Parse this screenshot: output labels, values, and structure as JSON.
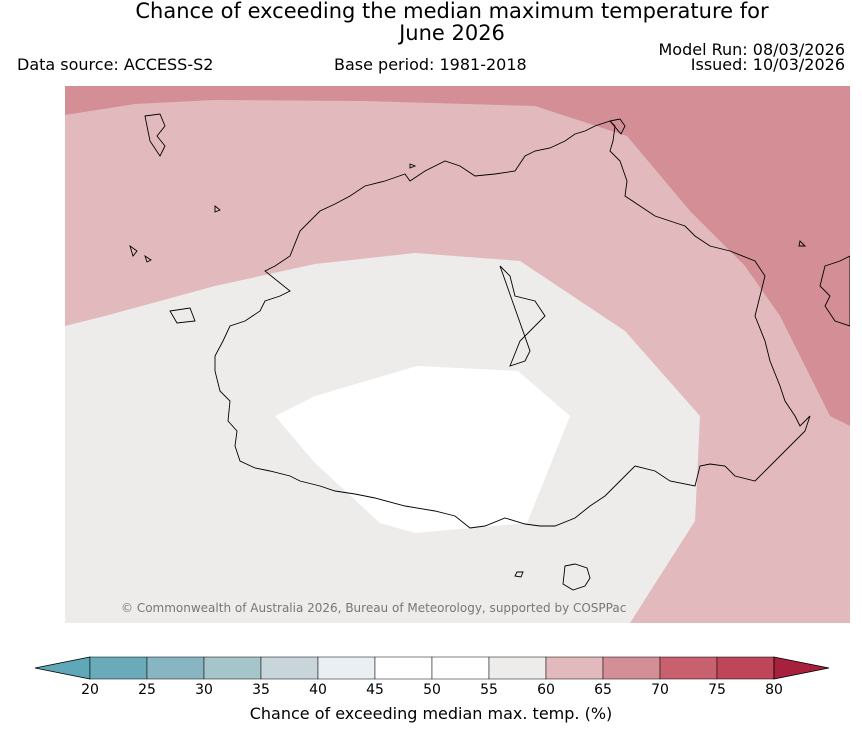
{
  "header": {
    "title_line1": "Chance of exceeding the median maximum temperature for",
    "title_line2": "June 2026",
    "data_source": "Data source: ACCESS-S2",
    "base_period": "Base period: 1981-2018",
    "model_run": "Model Run: 08/03/2026",
    "issued": "Issued: 10/03/2026"
  },
  "map": {
    "region": "Australia",
    "copyright": "© Commonwealth of Australia 2026, Bureau of Meteorology, supported by COSPPac",
    "colors": {
      "band_50_55": "#ffffff",
      "band_55_60": "#eeeceb",
      "band_60_65": "#e2babe",
      "band_65_70": "#d48f96"
    }
  },
  "colorbar": {
    "label": "Chance of exceeding median max. temp. (%)",
    "ticks": [
      "20",
      "25",
      "30",
      "35",
      "40",
      "45",
      "50",
      "55",
      "60",
      "65",
      "70",
      "75",
      "80"
    ],
    "low_extend_color": "#5ea8b8",
    "high_extend_color": "#a8203c",
    "band_colors": [
      "#69abb9",
      "#87b5c1",
      "#a5c5cb",
      "#c8d6dc",
      "#e9eff2",
      "#ffffff",
      "#ffffff",
      "#eeeceb",
      "#e2babe",
      "#d48f96",
      "#c8606e",
      "#be4658"
    ]
  }
}
